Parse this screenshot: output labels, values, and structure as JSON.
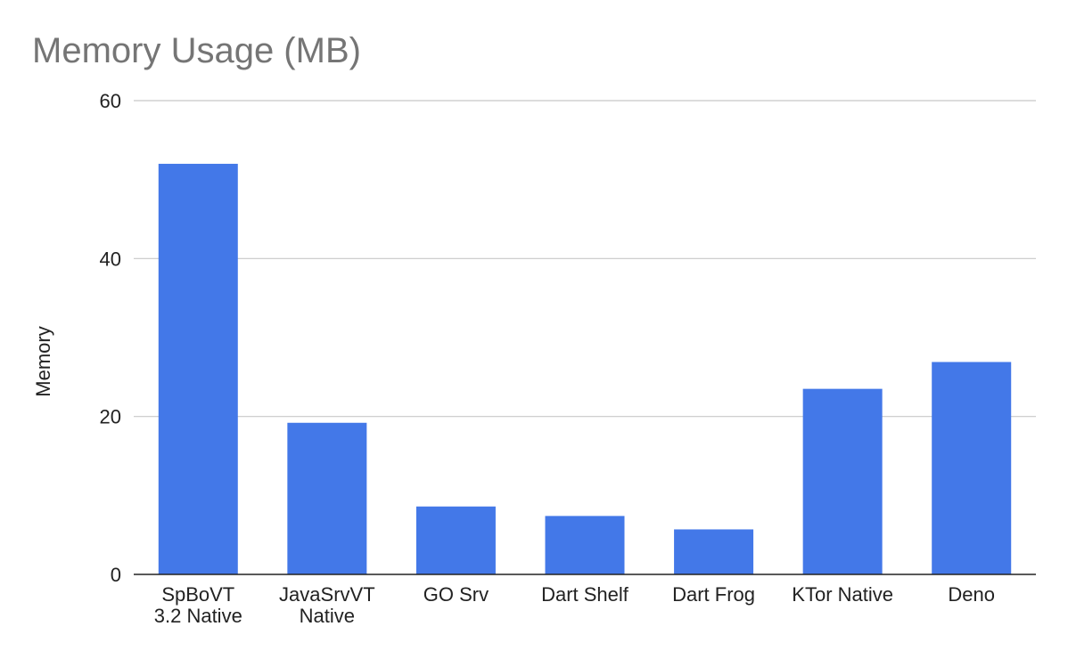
{
  "chart_data": {
    "type": "bar",
    "title": "Memory Usage (MB)",
    "xlabel": "",
    "ylabel": "Memory",
    "ylim": [
      0,
      60
    ],
    "yticks": [
      "0",
      "20",
      "40",
      "60"
    ],
    "ytick_values": [
      0,
      20,
      40,
      60
    ],
    "grid": true,
    "legend": "none",
    "categories": [
      [
        "SpBoVT",
        "3.2 Native"
      ],
      [
        "JavaSrvVT",
        "Native"
      ],
      [
        "GO Srv"
      ],
      [
        "Dart Shelf"
      ],
      [
        "Dart Frog"
      ],
      [
        "KTor Native"
      ],
      [
        "Deno"
      ]
    ],
    "values": [
      52,
      19.2,
      8.6,
      7.4,
      5.7,
      23.5,
      26.9
    ],
    "colors": {
      "bar": "#4378e8",
      "grid": "#c8c8c8",
      "axis": "#222222",
      "title": "#757575"
    }
  }
}
